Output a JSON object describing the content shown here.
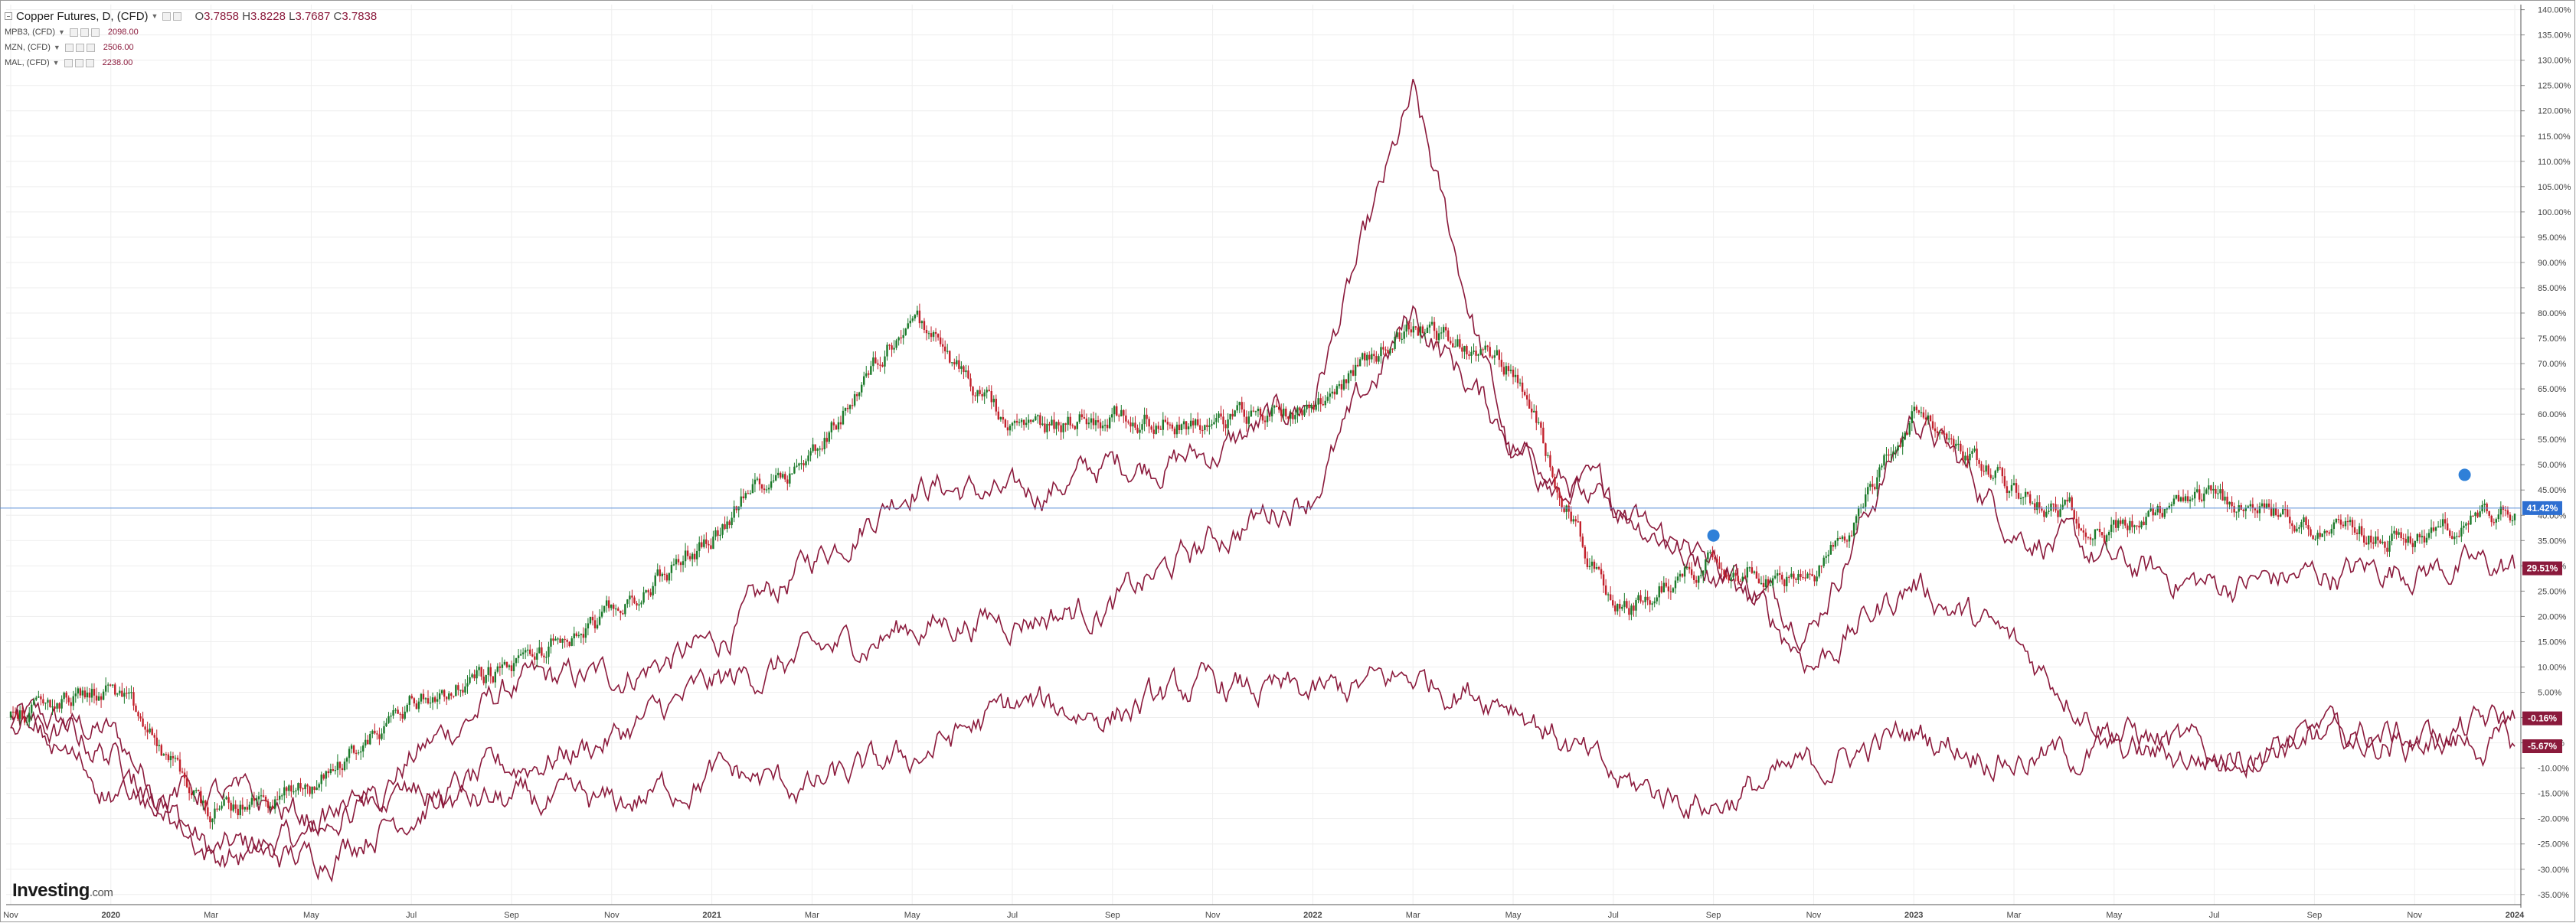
{
  "legend": {
    "main": {
      "name": "Copper Futures, D, (CFD)",
      "open_label": "O",
      "open": "3.7858",
      "high_label": "H",
      "high": "3.8228",
      "low_label": "L",
      "low": "3.7687",
      "close_label": "C",
      "close": "3.7838"
    },
    "overlays": [
      {
        "name": "MPB3, (CFD)",
        "value": "2098.00"
      },
      {
        "name": "MZN, (CFD)",
        "value": "2506.00"
      },
      {
        "name": "MAL, (CFD)",
        "value": "2238.00"
      }
    ]
  },
  "branding": {
    "logo": "Investing",
    "logo_suffix": ".com"
  },
  "colors": {
    "up": "#1b7a2a",
    "down": "#c2202b",
    "overlay": "#8b1a3c",
    "grid": "#eeeeee",
    "current_line": "#5b8fd6",
    "price_tag": "#2e6fd1"
  },
  "chart_data": {
    "type": "line",
    "title": "Copper Futures, D, (CFD)",
    "y_unit": "percent change",
    "ylim": [
      -37,
      141
    ],
    "y_ticks": [
      "-35.00%",
      "-30.00%",
      "-25.00%",
      "-20.00%",
      "-15.00%",
      "-10.00%",
      "-5.00%",
      "0.00%",
      "5.00%",
      "10.00%",
      "15.00%",
      "20.00%",
      "25.00%",
      "30.00%",
      "35.00%",
      "40.00%",
      "45.00%",
      "50.00%",
      "55.00%",
      "60.00%",
      "65.00%",
      "70.00%",
      "75.00%",
      "80.00%",
      "85.00%",
      "90.00%",
      "95.00%",
      "100.00%",
      "105.00%",
      "110.00%",
      "115.00%",
      "120.00%",
      "125.00%",
      "130.00%",
      "135.00%",
      "140.00%"
    ],
    "x_ticks": [
      "Nov",
      "2020",
      "Mar",
      "May",
      "Jul",
      "Sep",
      "Nov",
      "2021",
      "Mar",
      "May",
      "Jul",
      "Sep",
      "Nov",
      "2022",
      "Mar",
      "May",
      "Jul",
      "Sep",
      "Nov",
      "2023",
      "Mar",
      "May",
      "Jul",
      "Sep",
      "Nov",
      "2024"
    ],
    "x_bold": [
      "2020",
      "2021",
      "2022",
      "2023",
      "2024"
    ],
    "x_range": [
      "2019-11",
      "2024-01"
    ],
    "value_tags": [
      {
        "series": "Copper Futures",
        "label": "41.42%",
        "value": 41.42,
        "color": "#2e6fd1"
      },
      {
        "series": "MPB3",
        "label": "29.51%",
        "value": 29.51,
        "color": "#8b1a3c"
      },
      {
        "series": "MZN",
        "label": "-0.16%",
        "value": -0.16,
        "color": "#8b1a3c"
      },
      {
        "series": "MAL",
        "label": "-5.67%",
        "value": -5.67,
        "color": "#8b1a3c"
      }
    ],
    "series": [
      {
        "name": "Copper Futures",
        "style": "candles",
        "x": [
          "2019-11",
          "2020-01",
          "2020-03",
          "2020-05",
          "2020-07",
          "2020-09",
          "2020-11",
          "2021-01",
          "2021-02",
          "2021-03",
          "2021-05",
          "2021-07",
          "2021-09",
          "2021-11",
          "2022-01",
          "2022-03",
          "2022-05",
          "2022-07",
          "2022-09",
          "2022-11",
          "2023-01",
          "2023-03",
          "2023-05",
          "2023-07",
          "2023-09",
          "2023-11",
          "2024-01"
        ],
        "values": [
          0,
          6,
          -19,
          -14,
          3,
          10,
          20,
          36,
          47,
          52,
          80,
          56,
          60,
          58,
          62,
          78,
          69,
          20,
          32,
          26,
          60,
          45,
          37,
          43,
          38,
          35,
          41.4
        ]
      },
      {
        "name": "MPB3",
        "style": "line",
        "x": [
          "2019-11",
          "2020-01",
          "2020-03",
          "2020-05",
          "2020-07",
          "2020-09",
          "2020-11",
          "2021-01",
          "2021-03",
          "2021-05",
          "2021-07",
          "2021-09",
          "2021-11",
          "2022-01",
          "2022-03",
          "2022-05",
          "2022-07",
          "2022-09",
          "2022-11",
          "2023-01",
          "2023-03",
          "2023-05",
          "2023-07",
          "2023-09",
          "2023-11",
          "2024-01"
        ],
        "values": [
          0,
          -3,
          -27,
          -24,
          -8,
          6,
          8,
          14,
          31,
          47,
          43,
          50,
          52,
          63,
          122,
          50,
          43,
          30,
          19,
          60,
          38,
          30,
          26,
          28,
          30,
          29.5
        ]
      },
      {
        "name": "MZN",
        "style": "line",
        "x": [
          "2019-11",
          "2020-01",
          "2020-03",
          "2020-05",
          "2020-07",
          "2020-09",
          "2020-11",
          "2021-01",
          "2021-03",
          "2021-05",
          "2021-07",
          "2021-09",
          "2021-11",
          "2022-01",
          "2022-03",
          "2022-05",
          "2022-07",
          "2022-09",
          "2022-11",
          "2023-01",
          "2023-03",
          "2023-05",
          "2023-07",
          "2023-09",
          "2023-11",
          "2024-01"
        ],
        "values": [
          0,
          -7,
          -27,
          -28,
          -18,
          -10,
          -4,
          6,
          12,
          18,
          20,
          22,
          35,
          45,
          80,
          55,
          40,
          30,
          11,
          27,
          14,
          -2,
          -8,
          -5,
          -5,
          -0.2
        ]
      },
      {
        "name": "MAL",
        "style": "line",
        "x": [
          "2019-11",
          "2020-01",
          "2020-03",
          "2020-05",
          "2020-07",
          "2020-09",
          "2020-11",
          "2021-01",
          "2021-03",
          "2021-05",
          "2021-07",
          "2021-09",
          "2021-11",
          "2022-01",
          "2022-03",
          "2022-05",
          "2022-07",
          "2022-09",
          "2022-11",
          "2023-01",
          "2023-03",
          "2023-05",
          "2023-07",
          "2023-09",
          "2023-11",
          "2024-01"
        ],
        "values": [
          0,
          -14,
          -15,
          -20,
          -16,
          -17,
          -18,
          -11,
          -14,
          -8,
          2,
          1,
          6,
          4,
          8,
          4,
          -13,
          -17,
          -10,
          -3,
          -8,
          -7,
          -8,
          -3,
          -4,
          -5.7
        ]
      }
    ]
  }
}
